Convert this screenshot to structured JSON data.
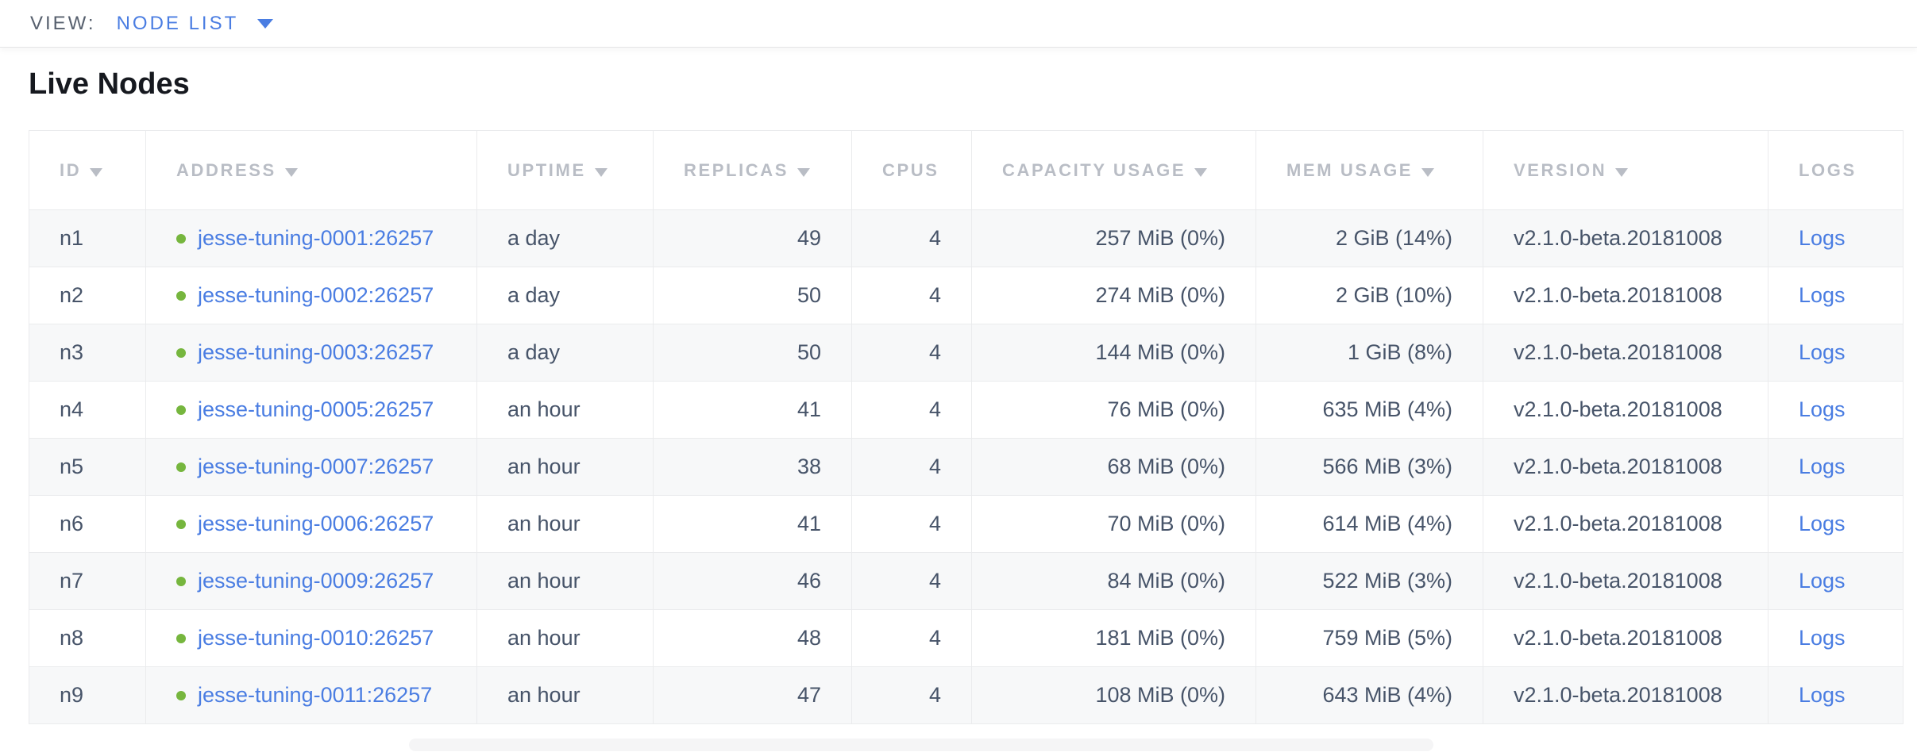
{
  "view_bar": {
    "label": "VIEW:",
    "selected": "NODE LIST"
  },
  "page": {
    "title": "Live Nodes"
  },
  "table": {
    "columns": [
      {
        "key": "id",
        "label": "ID",
        "sortable": true,
        "align": "left"
      },
      {
        "key": "address",
        "label": "ADDRESS",
        "sortable": true,
        "align": "left"
      },
      {
        "key": "uptime",
        "label": "UPTIME",
        "sortable": true,
        "align": "left"
      },
      {
        "key": "replicas",
        "label": "REPLICAS",
        "sortable": true,
        "align": "right"
      },
      {
        "key": "cpus",
        "label": "CPUS",
        "sortable": false,
        "align": "right"
      },
      {
        "key": "capacity_usage",
        "label": "CAPACITY USAGE",
        "sortable": true,
        "align": "right"
      },
      {
        "key": "mem_usage",
        "label": "MEM USAGE",
        "sortable": true,
        "align": "right"
      },
      {
        "key": "version",
        "label": "VERSION",
        "sortable": true,
        "align": "left"
      },
      {
        "key": "logs",
        "label": "LOGS",
        "sortable": false,
        "align": "left"
      }
    ],
    "rows": [
      {
        "id": "n1",
        "address": "jesse-tuning-0001:26257",
        "uptime": "a day",
        "replicas": "49",
        "cpus": "4",
        "capacity_usage": "257 MiB (0%)",
        "mem_usage": "2 GiB (14%)",
        "version": "v2.1.0-beta.20181008",
        "logs": "Logs"
      },
      {
        "id": "n2",
        "address": "jesse-tuning-0002:26257",
        "uptime": "a day",
        "replicas": "50",
        "cpus": "4",
        "capacity_usage": "274 MiB (0%)",
        "mem_usage": "2 GiB (10%)",
        "version": "v2.1.0-beta.20181008",
        "logs": "Logs"
      },
      {
        "id": "n3",
        "address": "jesse-tuning-0003:26257",
        "uptime": "a day",
        "replicas": "50",
        "cpus": "4",
        "capacity_usage": "144 MiB (0%)",
        "mem_usage": "1 GiB (8%)",
        "version": "v2.1.0-beta.20181008",
        "logs": "Logs"
      },
      {
        "id": "n4",
        "address": "jesse-tuning-0005:26257",
        "uptime": "an hour",
        "replicas": "41",
        "cpus": "4",
        "capacity_usage": "76 MiB (0%)",
        "mem_usage": "635 MiB (4%)",
        "version": "v2.1.0-beta.20181008",
        "logs": "Logs"
      },
      {
        "id": "n5",
        "address": "jesse-tuning-0007:26257",
        "uptime": "an hour",
        "replicas": "38",
        "cpus": "4",
        "capacity_usage": "68 MiB (0%)",
        "mem_usage": "566 MiB (3%)",
        "version": "v2.1.0-beta.20181008",
        "logs": "Logs"
      },
      {
        "id": "n6",
        "address": "jesse-tuning-0006:26257",
        "uptime": "an hour",
        "replicas": "41",
        "cpus": "4",
        "capacity_usage": "70 MiB (0%)",
        "mem_usage": "614 MiB (4%)",
        "version": "v2.1.0-beta.20181008",
        "logs": "Logs"
      },
      {
        "id": "n7",
        "address": "jesse-tuning-0009:26257",
        "uptime": "an hour",
        "replicas": "46",
        "cpus": "4",
        "capacity_usage": "84 MiB (0%)",
        "mem_usage": "522 MiB (3%)",
        "version": "v2.1.0-beta.20181008",
        "logs": "Logs"
      },
      {
        "id": "n8",
        "address": "jesse-tuning-0010:26257",
        "uptime": "an hour",
        "replicas": "48",
        "cpus": "4",
        "capacity_usage": "181 MiB (0%)",
        "mem_usage": "759 MiB (5%)",
        "version": "v2.1.0-beta.20181008",
        "logs": "Logs"
      },
      {
        "id": "n9",
        "address": "jesse-tuning-0011:26257",
        "uptime": "an hour",
        "replicas": "47",
        "cpus": "4",
        "capacity_usage": "108 MiB (0%)",
        "mem_usage": "643 MiB (4%)",
        "version": "v2.1.0-beta.20181008",
        "logs": "Logs"
      }
    ],
    "node_status": "healthy"
  },
  "colors": {
    "accent": "#4a7de2",
    "healthy_status": "#76b63e",
    "header_text": "#b9bdc5",
    "cell_text": "#475469"
  }
}
